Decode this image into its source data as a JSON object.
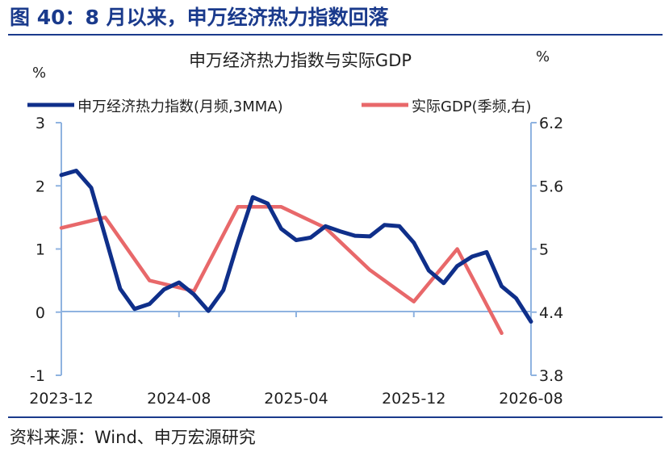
{
  "figure": {
    "title": "图 40：8 月以来，申万经济热力指数回落",
    "source": "资料来源：Wind、申万宏源研究"
  },
  "colors": {
    "brand": "#1a3a8c",
    "series_left": "#0f2f8a",
    "series_right": "#e8686a",
    "axis": "#8fb3e0"
  },
  "chart_data": {
    "type": "line",
    "title": "申万经济热力指数与实际GDP",
    "left_axis_unit": "%",
    "right_axis_unit": "%",
    "ylim": [
      -1,
      3
    ],
    "y_ticks": [
      -1,
      0,
      1,
      2,
      3
    ],
    "y2lim": [
      3.8,
      6.2
    ],
    "y2_ticks": [
      "3.8",
      "4.4",
      "5",
      "5.6",
      "6.2"
    ],
    "x_tick_labels": [
      "2023-12",
      "2024-08",
      "2025-04",
      "2025-12",
      "2026-08"
    ],
    "x_tick_dates": [
      "2023-12",
      "2024-08",
      "2025-04",
      "2025-12",
      "2026-08"
    ],
    "legend_position": "top",
    "series": [
      {
        "name": "申万经济热力指数(月频,3MMA)",
        "axis": "left",
        "x": [
          "2023-12",
          "2024-01",
          "2024-02",
          "2024-03",
          "2024-04",
          "2024-05",
          "2024-06",
          "2024-07",
          "2024-08",
          "2024-09",
          "2024-10",
          "2024-11",
          "2024-12",
          "2025-01",
          "2025-02",
          "2025-03",
          "2025-04",
          "2025-05",
          "2025-06",
          "2025-07",
          "2025-08",
          "2025-09",
          "2025-10",
          "2025-11",
          "2025-12",
          "2026-01",
          "2026-02",
          "2026-03",
          "2026-04",
          "2026-05",
          "2026-06",
          "2026-07",
          "2026-08"
        ],
        "values": [
          2.17,
          2.24,
          1.97,
          1.2,
          0.37,
          0.05,
          0.13,
          0.36,
          0.47,
          0.28,
          0.02,
          0.35,
          1.1,
          1.82,
          1.72,
          1.32,
          1.14,
          1.18,
          1.36,
          1.28,
          1.21,
          1.2,
          1.38,
          1.36,
          1.1,
          0.66,
          0.46,
          0.73,
          0.88,
          0.95,
          0.41,
          0.22,
          -0.15
        ]
      },
      {
        "name": "实际GDP(季频,右)",
        "axis": "right",
        "x": [
          "2023-12",
          "2024-03",
          "2024-06",
          "2024-09",
          "2024-12",
          "2025-03",
          "2025-06",
          "2025-09",
          "2025-12",
          "2026-03",
          "2026-06"
        ],
        "values": [
          5.2,
          5.3,
          4.7,
          4.6,
          5.4,
          5.4,
          5.2,
          4.8,
          4.5,
          5.0,
          4.2
        ]
      }
    ]
  }
}
